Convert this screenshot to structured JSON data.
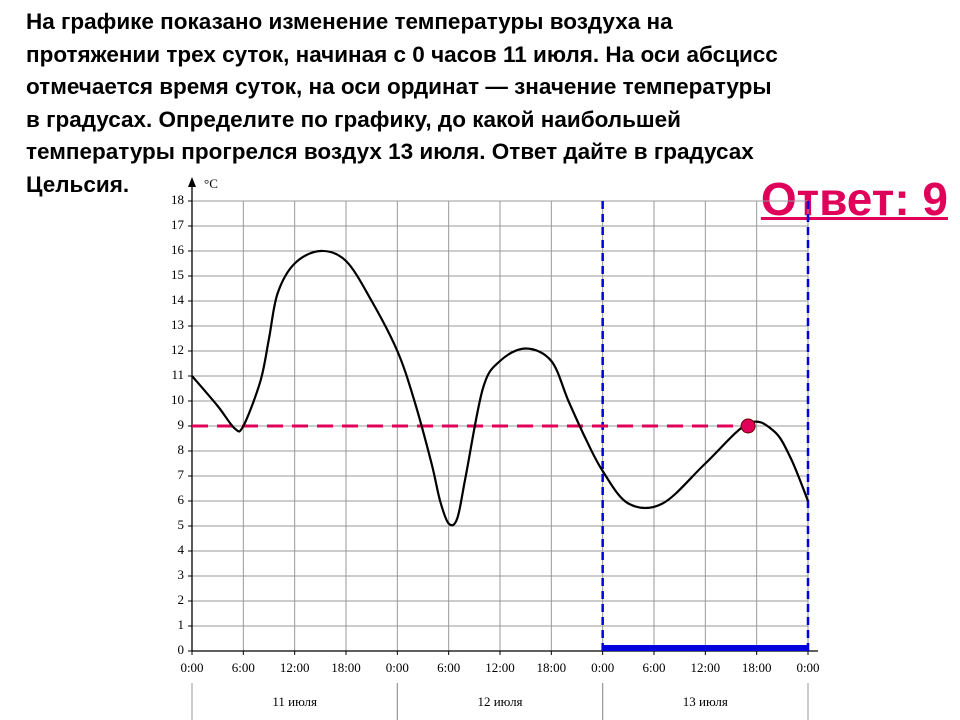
{
  "question": {
    "lines": [
      "На графике показано изменение температуры воздуха на",
      "протяжении трех суток, начиная с 0 часов 11 июля. На оси абсцисс",
      "отмечается время суток, на оси ординат — значение температуры",
      "в градусах. Определите по графику, до какой наибольшей",
      "температуры прогрелся воздух 13 июля. Ответ дайте в градусах",
      "Цельсия."
    ]
  },
  "answer": "Ответ: 9",
  "chart_data": {
    "type": "line",
    "y_unit": "°C",
    "x": [
      0,
      3,
      5,
      6,
      8,
      9,
      10,
      12,
      15,
      18,
      21,
      24,
      26,
      28,
      29,
      30,
      31,
      32,
      34,
      36,
      39,
      42,
      44,
      46,
      48,
      51,
      55,
      60,
      65,
      68,
      70,
      72
    ],
    "series": [
      {
        "color": "#000000",
        "values": [
          11,
          9.8,
          8.9,
          9.0,
          10.8,
          12.5,
          14.3,
          15.5,
          16.0,
          15.6,
          14.0,
          12,
          10,
          7.5,
          6,
          5.1,
          5.3,
          7,
          10.5,
          11.6,
          12.1,
          11.6,
          10,
          8.5,
          7.2,
          5.9,
          5.9,
          7.5,
          9.1,
          8.8,
          7.7,
          6.0
        ]
      }
    ],
    "xlim": [
      0,
      72
    ],
    "ylim": [
      0,
      18
    ],
    "xticks": [
      {
        "value": 0,
        "label": "0:00"
      },
      {
        "value": 6,
        "label": "6:00"
      },
      {
        "value": 12,
        "label": "12:00"
      },
      {
        "value": 18,
        "label": "18:00"
      },
      {
        "value": 24,
        "label": "0:00"
      },
      {
        "value": 30,
        "label": "6:00"
      },
      {
        "value": 36,
        "label": "12:00"
      },
      {
        "value": 42,
        "label": "18:00"
      },
      {
        "value": 48,
        "label": "0:00"
      },
      {
        "value": 54,
        "label": "6:00"
      },
      {
        "value": 60,
        "label": "12:00"
      },
      {
        "value": 66,
        "label": "18:00"
      },
      {
        "value": 72,
        "label": "0:00"
      }
    ],
    "yticks": [
      0,
      1,
      2,
      3,
      4,
      5,
      6,
      7,
      8,
      9,
      10,
      11,
      12,
      13,
      14,
      15,
      16,
      17,
      18
    ],
    "grid": true,
    "days": [
      {
        "label": "11 июля",
        "start": 0,
        "end": 24
      },
      {
        "label": "12 июля",
        "start": 24,
        "end": 48
      },
      {
        "label": "13 июля",
        "start": 48,
        "end": 72
      }
    ],
    "highlight": {
      "start": 48,
      "end": 72,
      "color": "#0000dd"
    },
    "answer_point": {
      "x": 65,
      "y": 9,
      "color": "#e0005a"
    }
  }
}
